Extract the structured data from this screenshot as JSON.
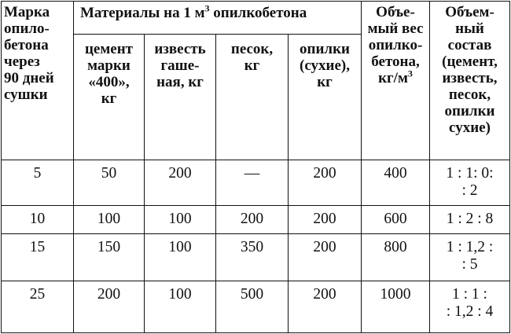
{
  "headers": {
    "grade": [
      "Марка",
      "опило-",
      "бетона",
      "через",
      "90 дней",
      "сушки"
    ],
    "materials_pre": "Материалы на 1 м",
    "materials_sup": "3",
    "materials_post": " опилкобетона",
    "cement": [
      "цемент",
      "марки",
      "«400»,",
      "кг"
    ],
    "lime": [
      "известь",
      "гаше-",
      "ная, кг"
    ],
    "sand": [
      "песок,",
      "кг"
    ],
    "sawdust": [
      "опилки",
      "(сухие),",
      "кг"
    ],
    "density_lines": [
      "Объе-",
      "мый вес",
      "опилко-",
      "бетона,"
    ],
    "density_unit_pre": "кг/м",
    "density_unit_sup": "3",
    "composition": [
      "Объем-",
      "ный",
      "состав",
      "(цемент,",
      "известь,",
      "песок,",
      "опилки",
      "сухие)"
    ]
  },
  "rows": [
    {
      "grade": "5",
      "cement": "50",
      "lime": "200",
      "sand": "—",
      "sawdust": "200",
      "density": "400",
      "comp": [
        "1 : 1: 0:",
        ": 2"
      ]
    },
    {
      "grade": "10",
      "cement": "100",
      "lime": "100",
      "sand": "200",
      "sawdust": "200",
      "density": "600",
      "comp": [
        "1 : 2 : 8"
      ]
    },
    {
      "grade": "15",
      "cement": "150",
      "lime": "100",
      "sand": "350",
      "sawdust": "200",
      "density": "800",
      "comp": [
        "1 : 1,2 :",
        ": 5"
      ]
    },
    {
      "grade": "25",
      "cement": "200",
      "lime": "100",
      "sand": "500",
      "sawdust": "200",
      "density": "1000",
      "comp": [
        "1 : 1 :",
        ": 1,2 : 4"
      ]
    }
  ]
}
